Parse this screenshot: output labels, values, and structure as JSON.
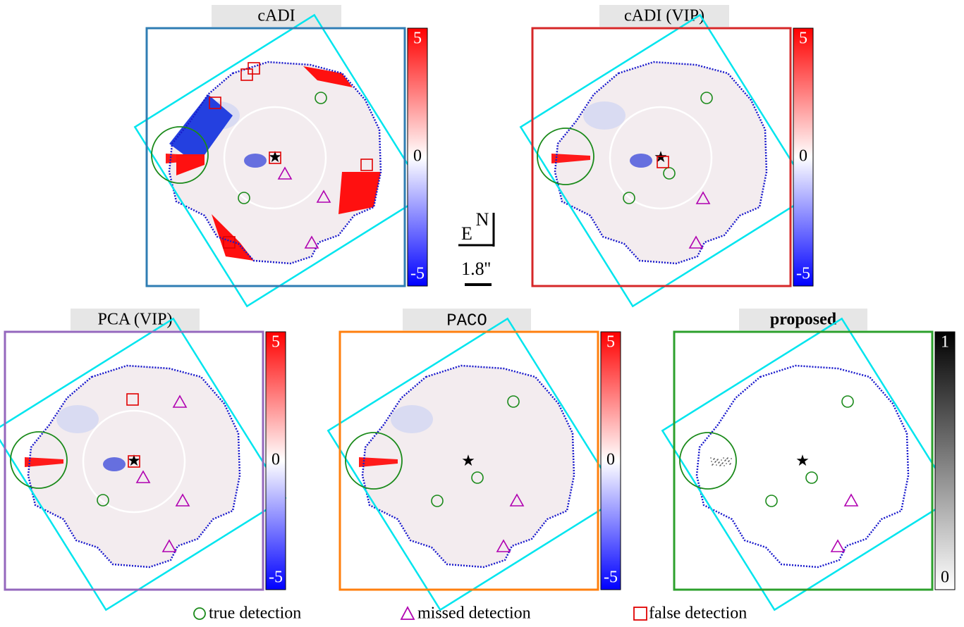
{
  "panels": [
    {
      "title": "cADI",
      "colorbar": [
        5,
        0,
        -5
      ]
    },
    {
      "title": "cADI (VIP)",
      "colorbar": [
        5,
        0,
        -5
      ]
    },
    {
      "title": "PCA (VIP)",
      "colorbar": [
        5,
        0,
        -5
      ]
    },
    {
      "title": "PACO",
      "colorbar": [
        5,
        0,
        -5
      ]
    },
    {
      "title": "proposed",
      "colorbar": [
        1,
        0
      ]
    }
  ],
  "compass": {
    "north": "N",
    "east": "E"
  },
  "scale_bar": "1.8''",
  "legend": [
    "true detection",
    "missed detection",
    "false detection"
  ]
}
